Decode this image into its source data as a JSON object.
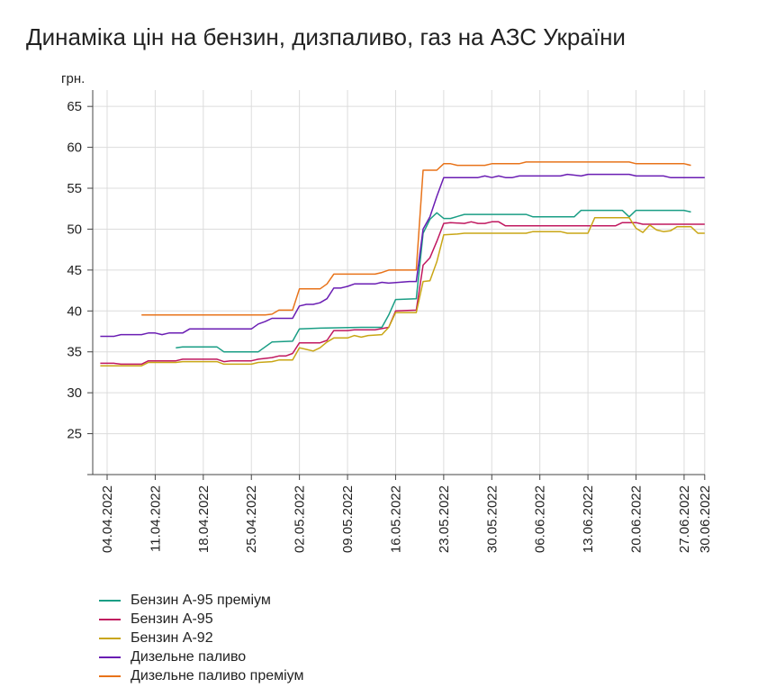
{
  "chart_data": {
    "type": "line",
    "title": "Динаміка цін на бензин, дизпаливо, газ на АЗС України",
    "ylabel": "грн.",
    "xlabel": "",
    "ylim": [
      20,
      67
    ],
    "yticks": [
      25,
      30,
      35,
      40,
      45,
      50,
      55,
      60,
      65
    ],
    "xrange": [
      "2022-04-03",
      "2022-06-30"
    ],
    "xticks": [
      "04.04.2022",
      "11.04.2022",
      "18.04.2022",
      "25.04.2022",
      "02.05.2022",
      "09.05.2022",
      "16.05.2022",
      "23.05.2022",
      "30.05.2022",
      "06.06.2022",
      "13.06.2022",
      "20.06.2022",
      "27.06.2022",
      "30.06.2022"
    ],
    "grid": true,
    "legend_position": "bottom-left",
    "series": [
      {
        "name": "Бензин А-95 преміум",
        "color": "#1a9e85",
        "points": [
          [
            "2022-04-14",
            35.5
          ],
          [
            "2022-04-15",
            35.6
          ],
          [
            "2022-04-20",
            35.6
          ],
          [
            "2022-04-21",
            35.0
          ],
          [
            "2022-04-26",
            35.0
          ],
          [
            "2022-04-28",
            36.2
          ],
          [
            "2022-05-01",
            36.3
          ],
          [
            "2022-05-02",
            37.8
          ],
          [
            "2022-05-05",
            37.9
          ],
          [
            "2022-05-11",
            38.0
          ],
          [
            "2022-05-14",
            38.0
          ],
          [
            "2022-05-15",
            39.5
          ],
          [
            "2022-05-16",
            41.4
          ],
          [
            "2022-05-19",
            41.5
          ],
          [
            "2022-05-20",
            49.5
          ],
          [
            "2022-05-21",
            51.2
          ],
          [
            "2022-05-22",
            52.0
          ],
          [
            "2022-05-23",
            51.3
          ],
          [
            "2022-05-24",
            51.3
          ],
          [
            "2022-05-26",
            51.8
          ],
          [
            "2022-06-04",
            51.8
          ],
          [
            "2022-06-05",
            51.5
          ],
          [
            "2022-06-11",
            51.5
          ],
          [
            "2022-06-12",
            52.3
          ],
          [
            "2022-06-18",
            52.3
          ],
          [
            "2022-06-19",
            51.5
          ],
          [
            "2022-06-20",
            52.3
          ],
          [
            "2022-06-27",
            52.3
          ],
          [
            "2022-06-28",
            52.1
          ]
        ]
      },
      {
        "name": "Бензин А-95",
        "color": "#c0185f",
        "points": [
          [
            "2022-04-03",
            33.6
          ],
          [
            "2022-04-05",
            33.6
          ],
          [
            "2022-04-06",
            33.5
          ],
          [
            "2022-04-09",
            33.5
          ],
          [
            "2022-04-10",
            33.9
          ],
          [
            "2022-04-14",
            33.9
          ],
          [
            "2022-04-15",
            34.1
          ],
          [
            "2022-04-20",
            34.1
          ],
          [
            "2022-04-21",
            33.8
          ],
          [
            "2022-04-22",
            33.9
          ],
          [
            "2022-04-25",
            33.9
          ],
          [
            "2022-04-26",
            34.1
          ],
          [
            "2022-04-28",
            34.3
          ],
          [
            "2022-04-29",
            34.5
          ],
          [
            "2022-04-30",
            34.5
          ],
          [
            "2022-05-01",
            34.8
          ],
          [
            "2022-05-02",
            36.1
          ],
          [
            "2022-05-05",
            36.1
          ],
          [
            "2022-05-06",
            36.4
          ],
          [
            "2022-05-07",
            37.6
          ],
          [
            "2022-05-09",
            37.6
          ],
          [
            "2022-05-10",
            37.7
          ],
          [
            "2022-05-13",
            37.7
          ],
          [
            "2022-05-15",
            38.0
          ],
          [
            "2022-05-16",
            40.0
          ],
          [
            "2022-05-19",
            40.1
          ],
          [
            "2022-05-20",
            45.6
          ],
          [
            "2022-05-21",
            46.5
          ],
          [
            "2022-05-22",
            48.5
          ],
          [
            "2022-05-23",
            50.7
          ],
          [
            "2022-05-24",
            50.8
          ],
          [
            "2022-05-26",
            50.7
          ],
          [
            "2022-05-27",
            50.9
          ],
          [
            "2022-05-28",
            50.7
          ],
          [
            "2022-05-29",
            50.7
          ],
          [
            "2022-05-30",
            50.9
          ],
          [
            "2022-05-31",
            50.9
          ],
          [
            "2022-06-01",
            50.4
          ],
          [
            "2022-06-17",
            50.4
          ],
          [
            "2022-06-18",
            50.8
          ],
          [
            "2022-06-20",
            50.8
          ],
          [
            "2022-06-21",
            50.6
          ],
          [
            "2022-06-30",
            50.6
          ]
        ]
      },
      {
        "name": "Бензин А-92",
        "color": "#c9a615",
        "points": [
          [
            "2022-04-03",
            33.3
          ],
          [
            "2022-04-09",
            33.3
          ],
          [
            "2022-04-10",
            33.7
          ],
          [
            "2022-04-14",
            33.7
          ],
          [
            "2022-04-15",
            33.8
          ],
          [
            "2022-04-20",
            33.8
          ],
          [
            "2022-04-21",
            33.5
          ],
          [
            "2022-04-25",
            33.5
          ],
          [
            "2022-04-26",
            33.7
          ],
          [
            "2022-04-28",
            33.8
          ],
          [
            "2022-04-29",
            34.0
          ],
          [
            "2022-05-01",
            34.0
          ],
          [
            "2022-05-02",
            35.5
          ],
          [
            "2022-05-03",
            35.3
          ],
          [
            "2022-05-04",
            35.1
          ],
          [
            "2022-05-05",
            35.5
          ],
          [
            "2022-05-06",
            36.2
          ],
          [
            "2022-05-07",
            36.7
          ],
          [
            "2022-05-09",
            36.7
          ],
          [
            "2022-05-10",
            37.0
          ],
          [
            "2022-05-11",
            36.8
          ],
          [
            "2022-05-12",
            37.0
          ],
          [
            "2022-05-14",
            37.1
          ],
          [
            "2022-05-15",
            38.0
          ],
          [
            "2022-05-16",
            39.8
          ],
          [
            "2022-05-19",
            39.8
          ],
          [
            "2022-05-20",
            43.6
          ],
          [
            "2022-05-21",
            43.7
          ],
          [
            "2022-05-22",
            46.0
          ],
          [
            "2022-05-23",
            49.3
          ],
          [
            "2022-05-25",
            49.4
          ],
          [
            "2022-05-26",
            49.5
          ],
          [
            "2022-06-04",
            49.5
          ],
          [
            "2022-06-05",
            49.7
          ],
          [
            "2022-06-09",
            49.7
          ],
          [
            "2022-06-10",
            49.5
          ],
          [
            "2022-06-13",
            49.5
          ],
          [
            "2022-06-14",
            51.4
          ],
          [
            "2022-06-19",
            51.4
          ],
          [
            "2022-06-20",
            50.1
          ],
          [
            "2022-06-21",
            49.6
          ],
          [
            "2022-06-22",
            50.5
          ],
          [
            "2022-06-23",
            49.9
          ],
          [
            "2022-06-24",
            49.7
          ],
          [
            "2022-06-25",
            49.8
          ],
          [
            "2022-06-26",
            50.3
          ],
          [
            "2022-06-28",
            50.3
          ],
          [
            "2022-06-29",
            49.5
          ],
          [
            "2022-06-30",
            49.5
          ]
        ]
      },
      {
        "name": "Дизельне паливо",
        "color": "#6a1db3",
        "points": [
          [
            "2022-04-03",
            36.9
          ],
          [
            "2022-04-05",
            36.9
          ],
          [
            "2022-04-06",
            37.1
          ],
          [
            "2022-04-09",
            37.1
          ],
          [
            "2022-04-10",
            37.3
          ],
          [
            "2022-04-11",
            37.3
          ],
          [
            "2022-04-12",
            37.1
          ],
          [
            "2022-04-13",
            37.3
          ],
          [
            "2022-04-15",
            37.3
          ],
          [
            "2022-04-16",
            37.8
          ],
          [
            "2022-04-25",
            37.8
          ],
          [
            "2022-04-26",
            38.4
          ],
          [
            "2022-04-27",
            38.7
          ],
          [
            "2022-04-28",
            39.1
          ],
          [
            "2022-05-01",
            39.1
          ],
          [
            "2022-05-02",
            40.6
          ],
          [
            "2022-05-03",
            40.8
          ],
          [
            "2022-05-04",
            40.8
          ],
          [
            "2022-05-05",
            41.0
          ],
          [
            "2022-05-06",
            41.5
          ],
          [
            "2022-05-07",
            42.8
          ],
          [
            "2022-05-08",
            42.8
          ],
          [
            "2022-05-09",
            43.0
          ],
          [
            "2022-05-10",
            43.3
          ],
          [
            "2022-05-13",
            43.3
          ],
          [
            "2022-05-14",
            43.5
          ],
          [
            "2022-05-15",
            43.4
          ],
          [
            "2022-05-18",
            43.6
          ],
          [
            "2022-05-19",
            43.6
          ],
          [
            "2022-05-20",
            50.0
          ],
          [
            "2022-05-21",
            51.5
          ],
          [
            "2022-05-22",
            54.0
          ],
          [
            "2022-05-23",
            56.3
          ],
          [
            "2022-05-28",
            56.3
          ],
          [
            "2022-05-29",
            56.5
          ],
          [
            "2022-05-30",
            56.3
          ],
          [
            "2022-05-31",
            56.5
          ],
          [
            "2022-06-01",
            56.3
          ],
          [
            "2022-06-02",
            56.3
          ],
          [
            "2022-06-03",
            56.5
          ],
          [
            "2022-06-09",
            56.5
          ],
          [
            "2022-06-10",
            56.7
          ],
          [
            "2022-06-12",
            56.5
          ],
          [
            "2022-06-13",
            56.7
          ],
          [
            "2022-06-19",
            56.7
          ],
          [
            "2022-06-20",
            56.5
          ],
          [
            "2022-06-24",
            56.5
          ],
          [
            "2022-06-25",
            56.3
          ],
          [
            "2022-06-30",
            56.3
          ]
        ]
      },
      {
        "name": "Дизельне паливо преміум",
        "color": "#e8731a",
        "points": [
          [
            "2022-04-09",
            39.5
          ],
          [
            "2022-04-27",
            39.5
          ],
          [
            "2022-04-28",
            39.6
          ],
          [
            "2022-04-29",
            40.1
          ],
          [
            "2022-05-01",
            40.1
          ],
          [
            "2022-05-02",
            42.7
          ],
          [
            "2022-05-05",
            42.7
          ],
          [
            "2022-05-06",
            43.3
          ],
          [
            "2022-05-07",
            44.5
          ],
          [
            "2022-05-13",
            44.5
          ],
          [
            "2022-05-14",
            44.7
          ],
          [
            "2022-05-15",
            45.0
          ],
          [
            "2022-05-19",
            45.0
          ],
          [
            "2022-05-20",
            57.2
          ],
          [
            "2022-05-22",
            57.2
          ],
          [
            "2022-05-23",
            58.0
          ],
          [
            "2022-05-24",
            58.0
          ],
          [
            "2022-05-25",
            57.8
          ],
          [
            "2022-05-29",
            57.8
          ],
          [
            "2022-05-30",
            58.0
          ],
          [
            "2022-06-03",
            58.0
          ],
          [
            "2022-06-04",
            58.2
          ],
          [
            "2022-06-19",
            58.2
          ],
          [
            "2022-06-20",
            58.0
          ],
          [
            "2022-06-27",
            58.0
          ],
          [
            "2022-06-28",
            57.8
          ]
        ]
      }
    ]
  }
}
